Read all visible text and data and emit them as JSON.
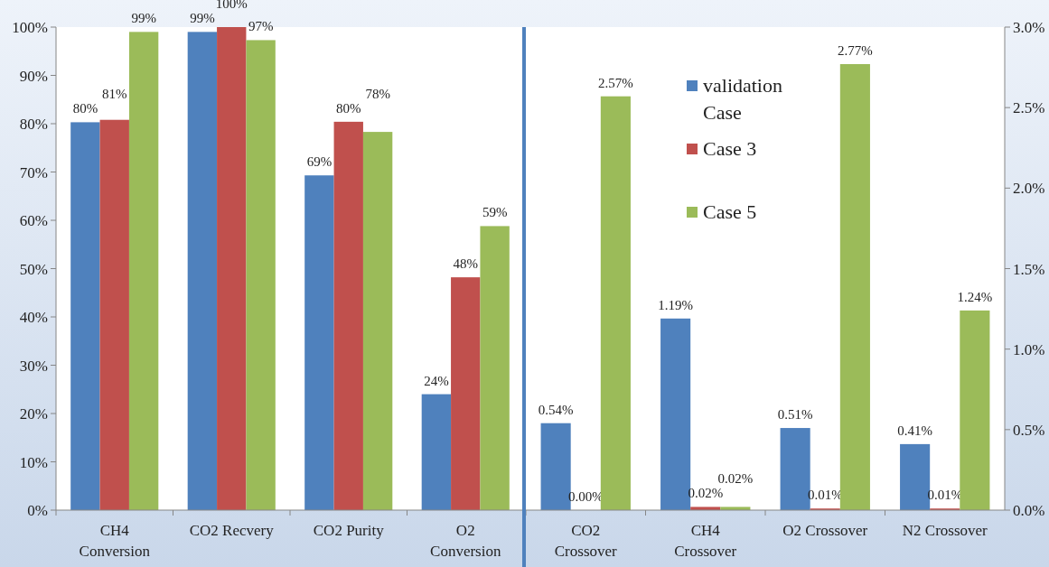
{
  "chart_data": [
    {
      "type": "bar",
      "categories": [
        "CH4 Conversion",
        "CO2 Recvery",
        "CO2 Purity",
        "O2 Conversion"
      ],
      "series": [
        {
          "color": "#4f81bd",
          "values": [
            80.3,
            99,
            69.3,
            24
          ],
          "value_labels": [
            "80%",
            "99%",
            "69%",
            "24%"
          ]
        },
        {
          "color": "#c0504d",
          "values": [
            80.8,
            100,
            80.4,
            48.2
          ],
          "value_labels": [
            "81%",
            "100%",
            "80%",
            "48%"
          ]
        },
        {
          "color": "#9bbb59",
          "values": [
            99,
            97.3,
            78.3,
            58.8
          ],
          "value_labels": [
            "99%",
            "97%",
            "78%",
            "59%"
          ]
        }
      ],
      "ylim": [
        0,
        100
      ],
      "yticks": [
        {
          "value": 0,
          "label": "0%"
        },
        {
          "value": 10,
          "label": "10%"
        },
        {
          "value": 20,
          "label": "20%"
        },
        {
          "value": 30,
          "label": "30%"
        },
        {
          "value": 40,
          "label": "40%"
        },
        {
          "value": 50,
          "label": "50%"
        },
        {
          "value": 60,
          "label": "60%"
        },
        {
          "value": 70,
          "label": "70%"
        },
        {
          "value": 80,
          "label": "80%"
        },
        {
          "value": 90,
          "label": "90%"
        },
        {
          "value": 100,
          "label": "100%"
        }
      ]
    },
    {
      "type": "bar",
      "categories": [
        "CO2 Crossover",
        "CH4 Crossover",
        "O2 Crossover",
        "N2 Crossover"
      ],
      "series": [
        {
          "name": "validation Case",
          "color": "#4f81bd",
          "axis": "y2",
          "values": [
            0.54,
            1.19,
            0.51,
            0.41
          ],
          "value_labels": [
            "0.54%",
            "1.19%",
            "0.51%",
            "0.41%"
          ]
        },
        {
          "name": "Case 3",
          "color": "#c0504d",
          "axis": "y2",
          "values": [
            0.0,
            0.02,
            0.01,
            0.01
          ],
          "value_labels": [
            "0.00%",
            "0.02%",
            "0.01%",
            "0.01%"
          ]
        },
        {
          "name": "Case 5",
          "color": "#9bbb59",
          "axis": "y2",
          "values": [
            2.57,
            0.02,
            2.77,
            1.24
          ],
          "value_labels": [
            "2.57%",
            "0.02%",
            "2.77%",
            "1.24%"
          ]
        }
      ],
      "y2lim": [
        0,
        3
      ],
      "y2ticks": [
        {
          "value": 0,
          "label": "0.0%"
        },
        {
          "value": 0.5,
          "label": "0.5%"
        },
        {
          "value": 1,
          "label": "1.0%"
        },
        {
          "value": 1.5,
          "label": "1.5%"
        },
        {
          "value": 2,
          "label": "2.0%"
        },
        {
          "value": 2.5,
          "label": "2.5%"
        },
        {
          "value": 3,
          "label": "3.0%"
        }
      ],
      "legend": "top"
    }
  ]
}
